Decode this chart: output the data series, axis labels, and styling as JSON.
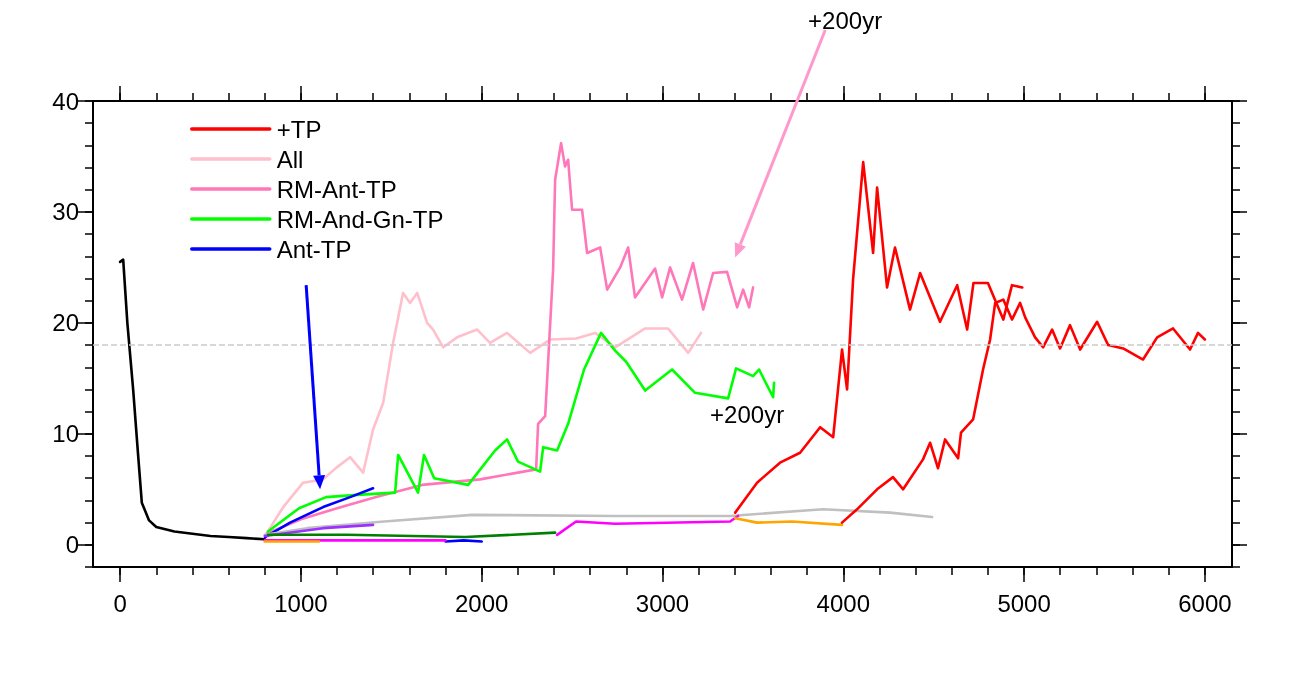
{
  "chart_data": {
    "type": "line",
    "xlim": [
      -150,
      6150
    ],
    "ylim": [
      -2,
      40
    ],
    "xticks": [
      0,
      1000,
      2000,
      3000,
      4000,
      5000,
      6000
    ],
    "yticks": [
      0,
      10,
      20,
      30,
      40
    ],
    "legend": "top left",
    "marker": "none",
    "line_style": "solid",
    "annotations": [
      "+200yr",
      "+200yr"
    ],
    "ref_lines": [
      {
        "axis": "y",
        "value": 18,
        "color": "#cccccc",
        "line_style": "dashed"
      }
    ],
    "series": [
      {
        "color": "#000000",
        "x": [
          0,
          17,
          40,
          72,
          100,
          120,
          160,
          200,
          300,
          400,
          500,
          600,
          700,
          800
        ],
        "values": [
          25.5,
          25.7,
          20,
          14,
          8,
          3.8,
          2.2,
          1.6,
          1.2,
          1,
          0.8,
          0.7,
          0.6,
          0.5
        ]
      },
      {
        "name": "+TP",
        "color": "#ff0000",
        "x": [
          3402,
          3523,
          3650,
          3761,
          3872,
          3944,
          3993,
          4021,
          4054,
          4110,
          4165,
          4187,
          4242,
          4286,
          4369,
          4425,
          4535,
          4630,
          4685,
          4720,
          4800,
          4885,
          4933,
          4990
        ],
        "values": [
          2.9,
          5.6,
          7.4,
          8.3,
          10.6,
          9.7,
          17.6,
          14,
          23.9,
          34.5,
          26.3,
          32.2,
          23.2,
          26.8,
          21.2,
          24.5,
          20.1,
          23.4,
          19.4,
          23.6,
          23.6,
          20.3,
          23.4,
          23.2
        ]
      },
      {
        "name": "All",
        "color": "#ffc0cb",
        "x": [
          813,
          902,
          1012,
          1123,
          1200,
          1272,
          1344,
          1399,
          1455,
          1510,
          1565,
          1604,
          1643,
          1698,
          1731,
          1787,
          1864,
          1975,
          2046,
          2140,
          2268,
          2378,
          2522,
          2627,
          2738,
          2904,
          3031,
          3142,
          3213
        ],
        "values": [
          1.1,
          3.4,
          5.6,
          5.9,
          7,
          7.9,
          6.5,
          10.4,
          12.8,
          18.2,
          22.7,
          21.8,
          22.7,
          20,
          19.4,
          17.8,
          18.7,
          19.4,
          18.2,
          19.1,
          17.3,
          18.5,
          18.6,
          19.1,
          17.8,
          19.5,
          19.5,
          17.3,
          19.1
        ]
      },
      {
        "name": "RM-Ant-TP",
        "color": "#ff77b8",
        "x": [
          810,
          1000,
          1200,
          1416,
          1670,
          1991,
          2301,
          2312,
          2351,
          2395,
          2406,
          2439,
          2461,
          2478,
          2500,
          2555,
          2583,
          2655,
          2694,
          2766,
          2810,
          2848,
          2959,
          2998,
          3042,
          3108,
          3169,
          3225,
          3280,
          3357,
          3413,
          3446,
          3479,
          3501
        ],
        "values": [
          1,
          2.3,
          3.3,
          4.3,
          5.4,
          5.9,
          6.8,
          10.9,
          11.6,
          24.8,
          32.9,
          36.2,
          34.1,
          34.7,
          30.2,
          30.2,
          26.3,
          26.8,
          23,
          25,
          26.8,
          22.3,
          24.9,
          22.3,
          25,
          22.1,
          25.4,
          21.2,
          24.5,
          24.6,
          21.4,
          23,
          21.4,
          23.2
        ]
      },
      {
        "name": "RM-And-Gn-TP",
        "color": "#00ff00",
        "x": [
          818,
          990,
          1139,
          1311,
          1521,
          1538,
          1648,
          1681,
          1737,
          1925,
          2074,
          2140,
          2201,
          2323,
          2340,
          2417,
          2478,
          2566,
          2660,
          2738,
          2799,
          2904,
          3053,
          3180,
          3363,
          3407,
          3501,
          3534,
          3612,
          3617
        ],
        "values": [
          1.2,
          3.3,
          4.3,
          4.5,
          4.7,
          8.1,
          4.7,
          8.1,
          6,
          5.4,
          8.5,
          9.5,
          7.5,
          6.6,
          8.8,
          8.5,
          10.9,
          15.8,
          19.1,
          17.5,
          16.5,
          13.9,
          15.8,
          13.7,
          13.2,
          15.9,
          15.2,
          15.8,
          13.3,
          14.6
        ]
      },
      {
        "name": "Ant-TP",
        "color": "#0000ff",
        "x": [
          802,
          940,
          1123,
          1272,
          1399
        ],
        "values": [
          0.7,
          2,
          3.4,
          4.3,
          5.1
        ]
      },
      {
        "color": "#0000ff",
        "x": [
          1800,
          1900,
          2000
        ],
        "values": [
          0.3,
          0.4,
          0.3
        ]
      },
      {
        "color": "#c0c0c0",
        "x": [
          800,
          1034,
          1460,
          1947,
          2738,
          3374,
          3888,
          4259,
          4491
        ],
        "values": [
          0.9,
          1.5,
          2.1,
          2.7,
          2.6,
          2.6,
          3.2,
          2.9,
          2.5
        ]
      },
      {
        "color": "#9b30ff",
        "x": [
          800,
          1123,
          1399
        ],
        "values": [
          0.8,
          1.5,
          1.8
        ]
      },
      {
        "color": "#008000",
        "x": [
          818,
          1253,
          1909,
          2406
        ],
        "values": [
          0.9,
          0.9,
          0.7,
          1.1
        ]
      },
      {
        "color": "#ff00ff",
        "x": [
          800,
          1300,
          1800
        ],
        "values": [
          0.4,
          0.4,
          0.4
        ]
      },
      {
        "color": "#ff00ff",
        "x": [
          2417,
          2522,
          2738,
          3374,
          3418
        ],
        "values": [
          0.9,
          2.1,
          1.9,
          2.1,
          2.6
        ]
      },
      {
        "color": "#ffa500",
        "x": [
          800,
          1100
        ],
        "values": [
          0.3,
          0.3
        ]
      },
      {
        "color": "#ffa500",
        "x": [
          3402,
          3523,
          3716,
          3993
        ],
        "values": [
          2.4,
          2,
          2.1,
          1.8
        ]
      },
      {
        "color": "#ff0000",
        "x": [
          3993,
          4076,
          4187,
          4275,
          4331,
          4441,
          4480,
          4524,
          4563,
          4635,
          4651,
          4718,
          4773,
          4812,
          4840,
          4885,
          4933,
          4978,
          5006,
          5061,
          5105,
          5155,
          5199,
          5254,
          5310,
          5404,
          5465,
          5548,
          5658,
          5736,
          5824,
          5918,
          5962,
          6000
        ],
        "values": [
          2,
          3.2,
          5,
          6.1,
          5,
          7.7,
          9.2,
          6.9,
          9.5,
          7.8,
          10.1,
          11.3,
          15.8,
          18.5,
          21.8,
          22.1,
          20.3,
          21.8,
          20.5,
          18.7,
          17.8,
          19.4,
          17.7,
          19.8,
          17.6,
          20.1,
          18,
          17.7,
          16.7,
          18.7,
          19.5,
          17.6,
          19.1,
          18.5
        ]
      }
    ]
  }
}
